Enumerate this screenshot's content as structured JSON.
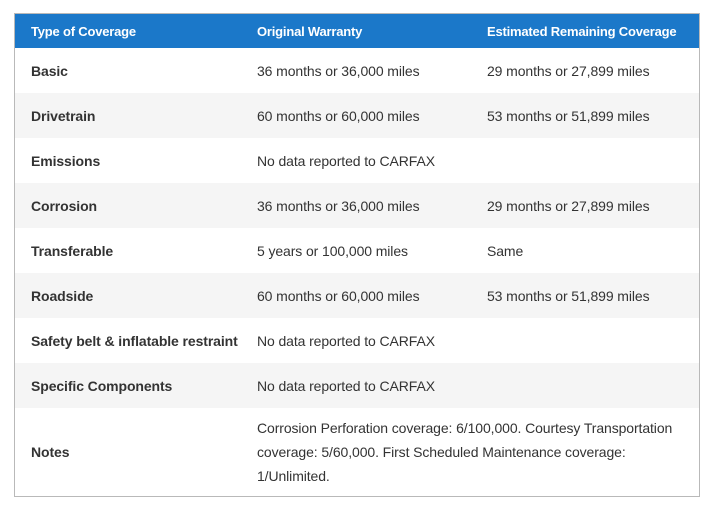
{
  "table": {
    "columns": [
      {
        "label": "Type of Coverage"
      },
      {
        "label": "Original Warranty"
      },
      {
        "label": "Estimated Remaining Coverage"
      }
    ],
    "rows": [
      {
        "type": "Basic",
        "original": "36 months or 36,000 miles",
        "remaining": "29 months or 27,899 miles",
        "span": false
      },
      {
        "type": "Drivetrain",
        "original": "60 months or 60,000 miles",
        "remaining": "53 months or 51,899 miles",
        "span": false
      },
      {
        "type": "Emissions",
        "original": "No data reported to CARFAX",
        "remaining": "",
        "span": false
      },
      {
        "type": "Corrosion",
        "original": "36 months or 36,000 miles",
        "remaining": "29 months or 27,899 miles",
        "span": false
      },
      {
        "type": "Transferable",
        "original": "5 years or 100,000 miles",
        "remaining": "Same",
        "span": false
      },
      {
        "type": "Roadside",
        "original": "60 months or 60,000 miles",
        "remaining": "53 months or 51,899 miles",
        "span": false
      },
      {
        "type": "Safety belt & inflatable restraint",
        "original": "No data reported to CARFAX",
        "remaining": "",
        "span": false
      },
      {
        "type": "Specific Components",
        "original": "No data reported to CARFAX",
        "remaining": "",
        "span": false
      },
      {
        "type": "Notes",
        "original": "Corrosion Perforation coverage: 6/100,000. Courtesy Transportation coverage: 5/60,000. First Scheduled Maintenance coverage: 1/Unlimited.",
        "remaining": "",
        "span": true
      }
    ],
    "colors": {
      "header_bg": "#1b78c9",
      "header_text": "#ffffff",
      "row_alt_bg": "#f5f5f5",
      "border": "#b9b9b9",
      "body_text": "#333333"
    }
  }
}
